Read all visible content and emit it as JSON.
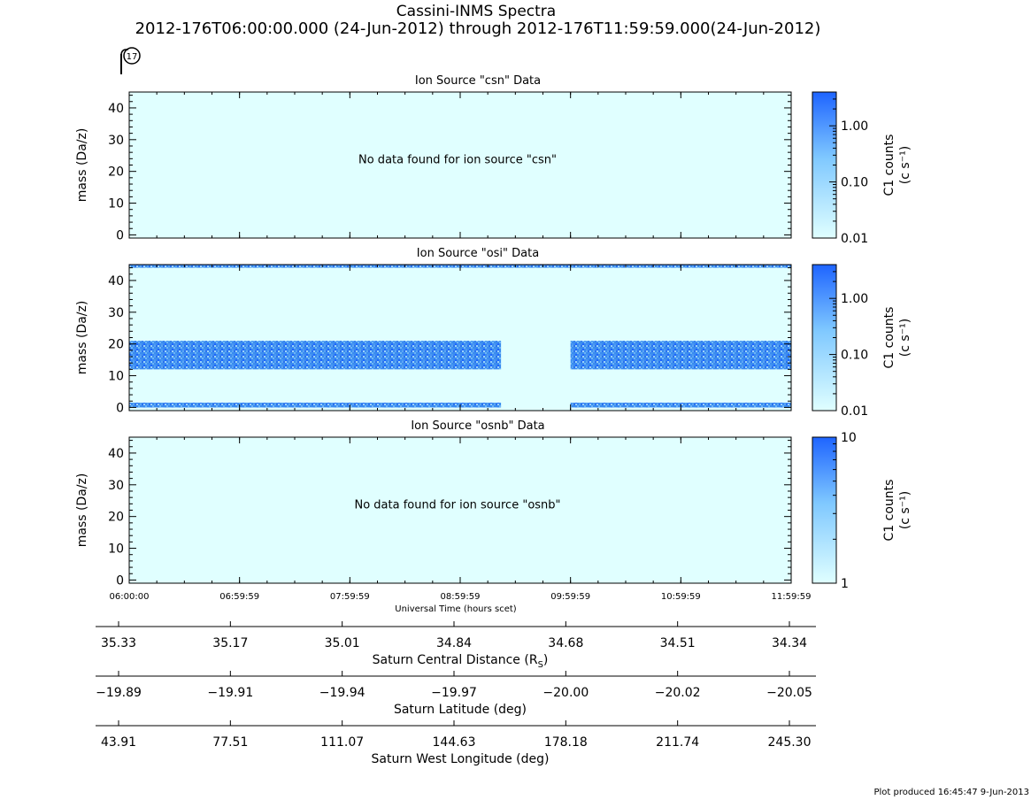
{
  "title": "Cassini-INMS Spectra",
  "subtitle": "2012-176T06:00:00.000 (24-Jun-2012) through 2012-176T11:59:59.000(24-Jun-2012)",
  "marker_label": "17",
  "footer": "Plot produced 16:45:47  9-Jun-2013",
  "colors": {
    "background": "#e0ffff",
    "high": "#1e64ff",
    "axis": "#000000"
  },
  "chart_data": [
    {
      "type": "heatmap",
      "title": "Ion Source \"csn\" Data",
      "ylabel": "mass (Da/z)",
      "ylim": [
        -1,
        45
      ],
      "yticks": [
        "0",
        "10",
        "20",
        "30",
        "40"
      ],
      "yticks_values": [
        0,
        10,
        20,
        30,
        40
      ],
      "message": "No data found for ion source \"csn\"",
      "bands": [],
      "colorbar": {
        "label_top": "C1 counts",
        "label_bottom": "(c s⁻¹)",
        "scale": "log",
        "range": [
          0.01,
          4
        ],
        "ticks": [
          "1.00",
          "0.10",
          "0.01"
        ],
        "tick_values": [
          1.0,
          0.1,
          0.01
        ]
      }
    },
    {
      "type": "heatmap",
      "title": "Ion Source \"osi\" Data",
      "ylabel": "mass (Da/z)",
      "ylim": [
        -1,
        45
      ],
      "yticks": [
        "0",
        "10",
        "20",
        "30",
        "40"
      ],
      "yticks_values": [
        0,
        10,
        20,
        30,
        40
      ],
      "message": "",
      "bands": [
        {
          "mass": [
            0,
            1.5
          ],
          "hours": [
            [
              6.0,
              9.37
            ],
            [
              10.0,
              12.0
            ]
          ]
        },
        {
          "mass": [
            12,
            21
          ],
          "hours": [
            [
              6.0,
              9.37
            ],
            [
              10.0,
              12.0
            ]
          ]
        },
        {
          "mass": [
            44,
            45
          ],
          "hours": [
            [
              6.0,
              12.0
            ]
          ]
        }
      ],
      "colorbar": {
        "label_top": "C1 counts",
        "label_bottom": "(c s⁻¹)",
        "scale": "log",
        "range": [
          0.01,
          4
        ],
        "ticks": [
          "1.00",
          "0.10",
          "0.01"
        ],
        "tick_values": [
          1.0,
          0.1,
          0.01
        ]
      }
    },
    {
      "type": "heatmap",
      "title": "Ion Source \"osnb\" Data",
      "ylabel": "mass (Da/z)",
      "ylim": [
        -1,
        45
      ],
      "yticks": [
        "0",
        "10",
        "20",
        "30",
        "40"
      ],
      "yticks_values": [
        0,
        10,
        20,
        30,
        40
      ],
      "message": "No data found for ion source \"osnb\"",
      "bands": [],
      "colorbar": {
        "label_top": "C1 counts",
        "label_bottom": "(c s⁻¹)",
        "scale": "log",
        "range": [
          1,
          10
        ],
        "ticks": [
          "10",
          "1"
        ],
        "tick_values": [
          10,
          1
        ]
      }
    }
  ],
  "time_axis": {
    "xlabel": "Universal Time (hours scet)",
    "range_hours": [
      6.0,
      12.0
    ],
    "ticks": [
      "06:00:00",
      "06:59:59",
      "07:59:59",
      "08:59:59",
      "09:59:59",
      "10:59:59",
      "11:59:59"
    ],
    "tick_hours": [
      6.0,
      7.0,
      8.0,
      9.0,
      10.0,
      11.0,
      12.0
    ]
  },
  "aux_axes": [
    {
      "label": "Saturn Central Distance (R",
      "label_sub": "S",
      "label_end": ")",
      "ticks": [
        "35.33",
        "35.17",
        "35.01",
        "34.84",
        "34.68",
        "34.51",
        "34.34"
      ]
    },
    {
      "label": "Saturn Latitude (deg)",
      "label_sub": "",
      "label_end": "",
      "ticks": [
        "−19.89",
        "−19.91",
        "−19.94",
        "−19.97",
        "−20.00",
        "−20.02",
        "−20.05"
      ]
    },
    {
      "label": "Saturn West Longitude (deg)",
      "label_sub": "",
      "label_end": "",
      "ticks": [
        "43.91",
        "77.51",
        "111.07",
        "144.63",
        "178.18",
        "211.74",
        "245.30"
      ]
    }
  ]
}
